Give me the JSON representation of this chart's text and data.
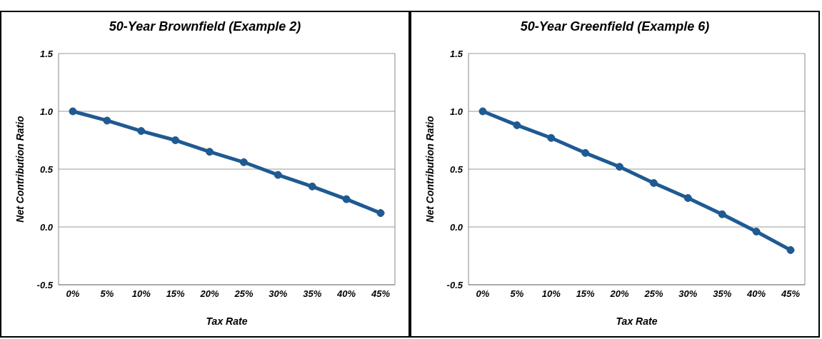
{
  "chart_data": [
    {
      "type": "line",
      "title": "50-Year Brownfield (Example 2)",
      "xlabel": "Tax Rate",
      "ylabel": "Net Contribution Ratio",
      "categories": [
        "0%",
        "5%",
        "10%",
        "15%",
        "20%",
        "25%",
        "30%",
        "35%",
        "40%",
        "45%"
      ],
      "series": [
        {
          "color": "#1f5a92",
          "values": [
            1.0,
            0.92,
            0.83,
            0.75,
            0.65,
            0.56,
            0.45,
            0.35,
            0.24,
            0.12
          ]
        }
      ],
      "ylim": [
        -0.5,
        1.5
      ],
      "yticks": [
        {
          "value": -0.5,
          "label": "-0.5"
        },
        {
          "value": 0,
          "label": "0.0"
        },
        {
          "value": 0.5,
          "label": "0.5"
        },
        {
          "value": 1,
          "label": "1.0"
        },
        {
          "value": 1.5,
          "label": "1.5"
        }
      ],
      "grid": "y",
      "marker": "circle",
      "line_style": "solid",
      "legend": false
    },
    {
      "type": "line",
      "title": "50-Year Greenfield (Example 6)",
      "xlabel": "Tax Rate",
      "ylabel": "Net Contribution Ratio",
      "categories": [
        "0%",
        "5%",
        "10%",
        "15%",
        "20%",
        "25%",
        "30%",
        "35%",
        "40%",
        "45%"
      ],
      "series": [
        {
          "color": "#1f5a92",
          "values": [
            1.0,
            0.88,
            0.77,
            0.64,
            0.52,
            0.38,
            0.25,
            0.11,
            -0.04,
            -0.2
          ]
        }
      ],
      "ylim": [
        -0.5,
        1.5
      ],
      "yticks": [
        {
          "value": -0.5,
          "label": "-0.5"
        },
        {
          "value": 0,
          "label": "0.0"
        },
        {
          "value": 0.5,
          "label": "0.5"
        },
        {
          "value": 1,
          "label": "1.0"
        },
        {
          "value": 1.5,
          "label": "1.5"
        }
      ],
      "grid": "y",
      "marker": "circle",
      "line_style": "solid",
      "legend": false
    }
  ]
}
